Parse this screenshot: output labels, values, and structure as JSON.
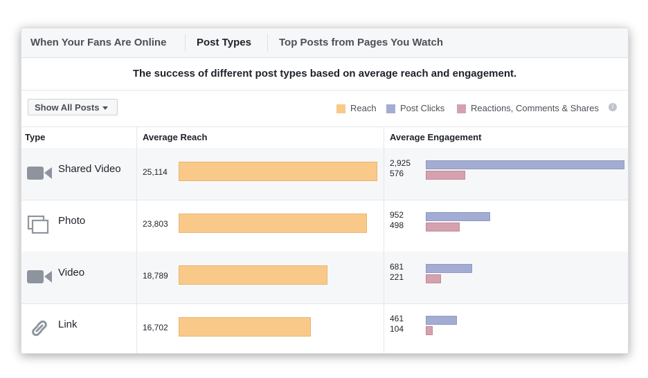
{
  "tabs": [
    {
      "label": "When Your Fans Are Online",
      "active": false
    },
    {
      "label": "Post Types",
      "active": true
    },
    {
      "label": "Top Posts from Pages You Watch",
      "active": false
    }
  ],
  "subtitle": "The success of different post types based on average reach and engagement.",
  "filter": {
    "label": "Show All Posts"
  },
  "legend": [
    {
      "label": "Reach",
      "color": "#f9c98a"
    },
    {
      "label": "Post Clicks",
      "color": "#a3acd2"
    },
    {
      "label": "Reactions, Comments & Shares",
      "color": "#d4a1ae"
    }
  ],
  "table": {
    "headers": {
      "type": "Type",
      "reach": "Average Reach",
      "engagement": "Average Engagement"
    }
  },
  "chart_data": {
    "type": "bar",
    "categories": [
      "Shared Video",
      "Photo",
      "Video",
      "Link"
    ],
    "icons": [
      "video-camera-icon",
      "photo-album-icon",
      "video-camera-icon",
      "link-chain-icon"
    ],
    "reach": {
      "name": "Reach",
      "values": [
        25114,
        23803,
        18789,
        16702
      ],
      "labels": [
        "25,114",
        "23,803",
        "18,789",
        "16,702"
      ]
    },
    "series": [
      {
        "name": "Post Clicks",
        "values": [
          2925,
          952,
          681,
          461
        ],
        "labels": [
          "2,925",
          "952",
          "681",
          "461"
        ]
      },
      {
        "name": "Reactions, Comments & Shares",
        "values": [
          576,
          498,
          221,
          104
        ],
        "labels": [
          "576",
          "498",
          "221",
          "104"
        ]
      }
    ]
  }
}
